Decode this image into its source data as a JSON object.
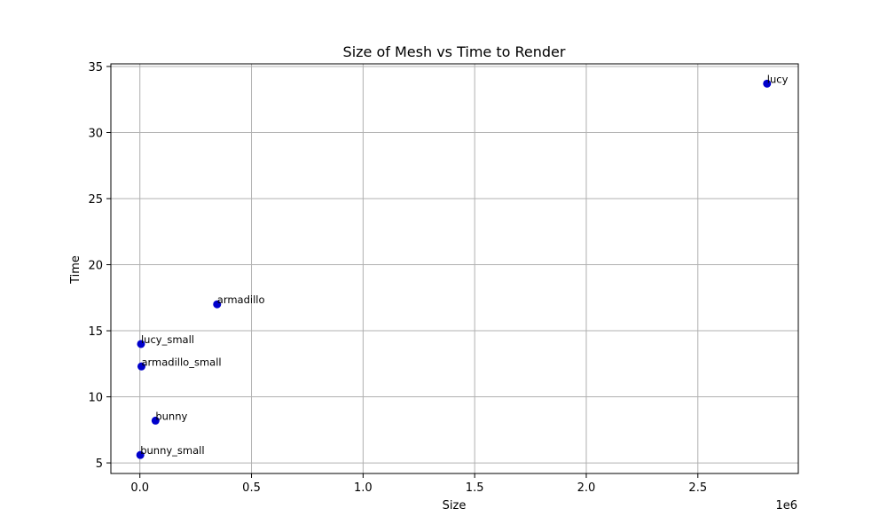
{
  "chart_data": {
    "type": "scatter",
    "title": "Size of Mesh vs Time to Render",
    "xlabel": "Size",
    "ylabel": "Time",
    "x_offset_label": "1e6",
    "x_scale": 1000000,
    "xlim": [
      -130000,
      2950000
    ],
    "ylim": [
      4.2,
      35.2
    ],
    "xticks": [
      0,
      500000,
      1000000,
      1500000,
      2000000,
      2500000
    ],
    "xtick_labels": [
      "0.0",
      "0.5",
      "1.0",
      "1.5",
      "2.0",
      "2.5"
    ],
    "yticks": [
      5,
      10,
      15,
      20,
      25,
      30,
      35
    ],
    "ytick_labels": [
      "5",
      "10",
      "15",
      "20",
      "25",
      "30",
      "35"
    ],
    "grid": true,
    "marker_color": "#0000cc",
    "points": [
      {
        "label": "bunny_small",
        "x": 1900,
        "y": 5.6
      },
      {
        "label": "bunny",
        "x": 70000,
        "y": 8.2
      },
      {
        "label": "armadillo_small",
        "x": 7000,
        "y": 12.3
      },
      {
        "label": "lucy_small",
        "x": 5000,
        "y": 14.0
      },
      {
        "label": "armadillo",
        "x": 346000,
        "y": 17.0
      },
      {
        "label": "lucy",
        "x": 2810000,
        "y": 33.7
      }
    ]
  }
}
